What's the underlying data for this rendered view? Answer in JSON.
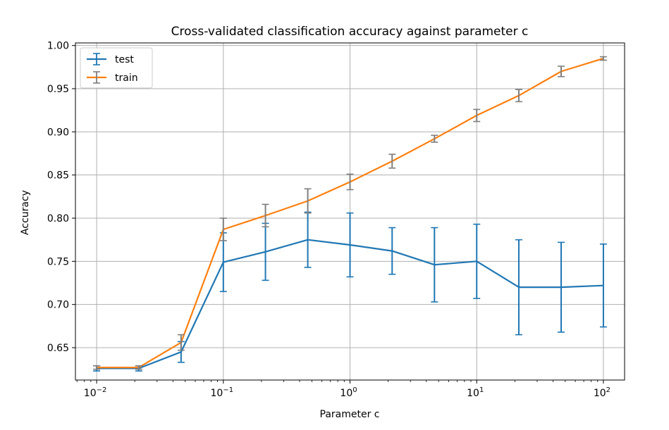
{
  "chart_data": {
    "type": "line",
    "title": "Cross-validated classification accuracy against parameter c",
    "xlabel": "Parameter c",
    "ylabel": "Accuracy",
    "xscale": "log",
    "xlim": [
      0.0068,
      147
    ],
    "ylim": [
      0.6125,
      1.003
    ],
    "grid": true,
    "legend_position": "top-left",
    "x_ticks": [
      {
        "value": 0.01,
        "base": "10",
        "exp": "−2"
      },
      {
        "value": 0.1,
        "base": "10",
        "exp": "−1"
      },
      {
        "value": 1,
        "base": "10",
        "exp": "0"
      },
      {
        "value": 10,
        "base": "10",
        "exp": "1"
      },
      {
        "value": 100,
        "base": "10",
        "exp": "2"
      }
    ],
    "y_ticks": [
      "0.65",
      "0.70",
      "0.75",
      "0.80",
      "0.85",
      "0.90",
      "0.95",
      "1.00"
    ],
    "x": [
      0.01,
      0.0215,
      0.0464,
      0.1,
      0.215,
      0.464,
      1.0,
      2.15,
      4.64,
      10.0,
      21.5,
      46.4,
      100.0
    ],
    "series": [
      {
        "name": "test",
        "color": "#1f77b4",
        "values": [
          0.626,
          0.626,
          0.645,
          0.749,
          0.761,
          0.775,
          0.769,
          0.762,
          0.746,
          0.75,
          0.72,
          0.72,
          0.722
        ],
        "errors": [
          0.003,
          0.003,
          0.012,
          0.034,
          0.033,
          0.032,
          0.037,
          0.027,
          0.043,
          0.043,
          0.055,
          0.052,
          0.048
        ]
      },
      {
        "name": "train",
        "color": "#ff7f0e",
        "values": [
          0.627,
          0.627,
          0.656,
          0.787,
          0.803,
          0.82,
          0.842,
          0.866,
          0.892,
          0.919,
          0.942,
          0.97,
          0.985
        ]
      }
    ],
    "train_error_bars": {
      "color": "#7f7f7f",
      "errors": [
        0.002,
        0.002,
        0.009,
        0.013,
        0.013,
        0.014,
        0.009,
        0.008,
        0.004,
        0.007,
        0.007,
        0.006,
        0.002
      ]
    }
  }
}
